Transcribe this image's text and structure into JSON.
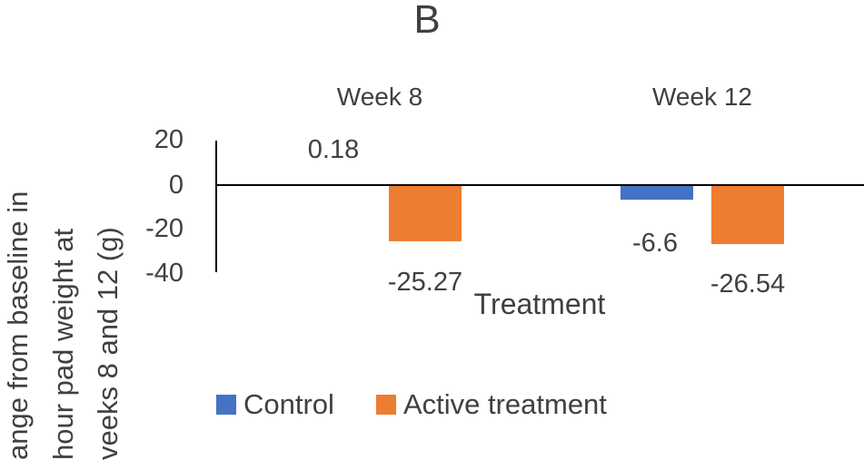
{
  "chart_data": {
    "type": "bar",
    "panel_label": "B",
    "categories": [
      "Week 8",
      "Week 12"
    ],
    "series": [
      {
        "name": "Control",
        "color": "#4472C4",
        "values": [
          0.18,
          -6.6
        ]
      },
      {
        "name": "Active treatment",
        "color": "#ED7D31",
        "values": [
          -25.27,
          -26.54
        ]
      }
    ],
    "data_labels": [
      "0.18",
      "-6.6",
      "-25.27",
      "-26.54"
    ],
    "xlabel": "Treatment",
    "ylabel_lines": [
      "ange from baseline in",
      "hour pad weight at",
      "veeks 8 and 12 (g)"
    ],
    "yticks": [
      "20",
      "0",
      "-20",
      "-40"
    ],
    "ylim": [
      -40,
      20
    ],
    "legend_position": "bottom"
  }
}
